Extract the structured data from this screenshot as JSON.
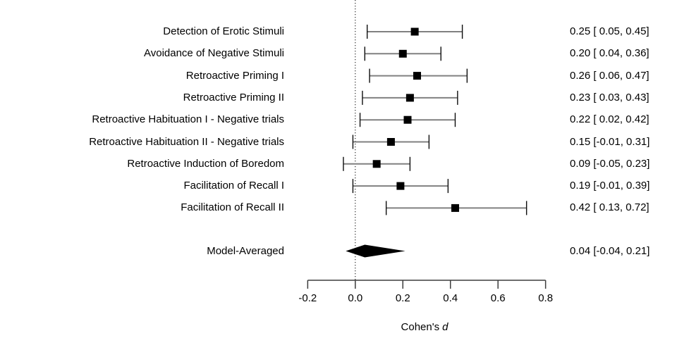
{
  "chart_data": {
    "type": "forest",
    "title": "",
    "xlabel": "Cohen's",
    "xlabel_italic": "d",
    "xlim": [
      -0.2,
      0.8
    ],
    "x_ticks": [
      -0.2,
      0.0,
      0.2,
      0.4,
      0.6,
      0.8
    ],
    "x_tick_labels": [
      "-0.2",
      "0.0",
      "0.2",
      "0.4",
      "0.6",
      "0.8"
    ],
    "zero_reference_line": 0.0,
    "grid": false,
    "studies": [
      {
        "label": "Detection of Erotic Stimuli",
        "d": 0.25,
        "ci_lower": 0.05,
        "ci_upper": 0.45,
        "value_text": "0.25 [ 0.05, 0.45]"
      },
      {
        "label": "Avoidance of Negative Stimuli",
        "d": 0.2,
        "ci_lower": 0.04,
        "ci_upper": 0.36,
        "value_text": "0.20 [ 0.04, 0.36]"
      },
      {
        "label": "Retroactive Priming I",
        "d": 0.26,
        "ci_lower": 0.06,
        "ci_upper": 0.47,
        "value_text": "0.26 [ 0.06, 0.47]"
      },
      {
        "label": "Retroactive Priming II",
        "d": 0.23,
        "ci_lower": 0.03,
        "ci_upper": 0.43,
        "value_text": "0.23 [ 0.03, 0.43]"
      },
      {
        "label": "Retroactive Habituation I - Negative trials",
        "d": 0.22,
        "ci_lower": 0.02,
        "ci_upper": 0.42,
        "value_text": "0.22 [ 0.02, 0.42]"
      },
      {
        "label": "Retroactive Habituation II - Negative trials",
        "d": 0.15,
        "ci_lower": -0.01,
        "ci_upper": 0.31,
        "value_text": "0.15 [-0.01, 0.31]"
      },
      {
        "label": "Retroactive Induction of Boredom",
        "d": 0.09,
        "ci_lower": -0.05,
        "ci_upper": 0.23,
        "value_text": "0.09 [-0.05, 0.23]"
      },
      {
        "label": "Facilitation of Recall I",
        "d": 0.19,
        "ci_lower": -0.01,
        "ci_upper": 0.39,
        "value_text": "0.19 [-0.01, 0.39]"
      },
      {
        "label": "Facilitation of Recall II",
        "d": 0.42,
        "ci_lower": 0.13,
        "ci_upper": 0.72,
        "value_text": "0.42 [ 0.13, 0.72]"
      }
    ],
    "model": {
      "label": "Model-Averaged",
      "d": 0.04,
      "ci_lower": -0.04,
      "ci_upper": 0.21,
      "value_text": "0.04 [-0.04, 0.21]",
      "marker": "diamond"
    }
  },
  "colors": {
    "background": "#ffffff",
    "text": "#000000",
    "ci_line": "#808080",
    "ci_cap": "#0d0d0d",
    "marker": "#000000",
    "diamond": "#000000",
    "zero_line": "#000000",
    "axis": "#3d3d3d"
  }
}
